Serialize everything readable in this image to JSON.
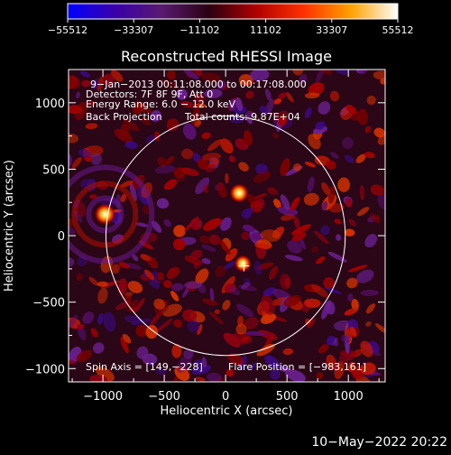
{
  "chart_data": {
    "type": "heatmap",
    "title": "Reconstructed RHESSI Image",
    "xlabel": "Heliocentric X (arcsec)",
    "ylabel": "Heliocentric Y (arcsec)",
    "xlim": [
      -1280,
      1300
    ],
    "ylim": [
      -1100,
      1250
    ],
    "xticks": [
      -1000,
      -500,
      0,
      500,
      1000
    ],
    "yticks": [
      -1000,
      -500,
      0,
      500,
      1000
    ],
    "xtick_labels": [
      "−1000",
      "−500",
      "0",
      "500",
      "1000"
    ],
    "ytick_labels": [
      "−1000",
      "−500",
      "0",
      "500",
      "1000"
    ],
    "colorbar": {
      "ticks": [
        -55512,
        -33307,
        -11102,
        11102,
        33307,
        55512
      ],
      "tick_labels": [
        "−55512",
        "−33307",
        "−11102",
        "11102",
        "33307",
        "55512"
      ],
      "colors": [
        "#0000ff",
        "#3a00a8",
        "#5a1a70",
        "#2a0010",
        "#b00000",
        "#ff3000",
        "#ffa000",
        "#ffffff"
      ]
    },
    "annotations": {
      "time": "9−Jan−2013 00:11:08.000 to 00:17:08.000",
      "detectors": "Detectors: 7F 8F 9F, Att 0",
      "energy": "Energy Range: 6.0 − 12.0 keV",
      "method": "Back Projection",
      "counts": "Total counts: 9.87E+04",
      "spin_axis": "Spin Axis = [149,−228]",
      "flare_position": "Flare Position = [−983,161]"
    },
    "solar_disk": {
      "center": [
        0,
        0
      ],
      "radius": 975
    },
    "sources": [
      {
        "x": -983,
        "y": 161,
        "brightness": 1.0
      },
      {
        "x": 110,
        "y": 320,
        "brightness": 0.8
      },
      {
        "x": 140,
        "y": -210,
        "brightness": 0.6
      }
    ],
    "marker": {
      "x": 149,
      "y": -228
    }
  },
  "footer": {
    "date": "10−May−2022 20:22"
  }
}
